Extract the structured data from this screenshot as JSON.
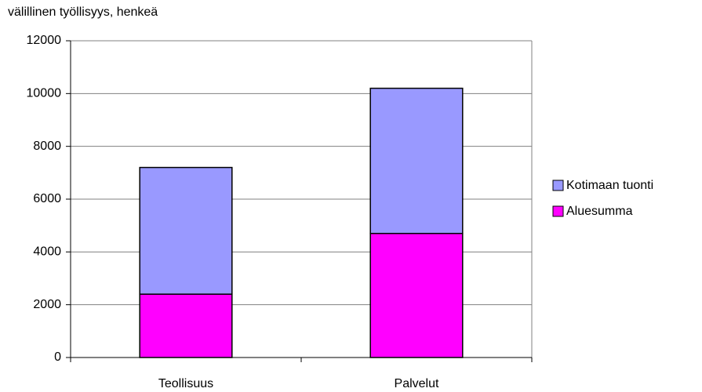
{
  "chart_data": {
    "type": "stacked_bar",
    "ylabel": "välillinen työllisyys, henkeä",
    "categories": [
      "Teollisuus",
      "Palvelut"
    ],
    "series": [
      {
        "name": "Aluesumma",
        "color": "#ff00ff",
        "values": [
          2400,
          4700
        ]
      },
      {
        "name": "Kotimaan tuonti",
        "color": "#9999ff",
        "values": [
          4800,
          5500
        ]
      }
    ],
    "ylim": [
      0,
      12000
    ],
    "yticks": [
      0,
      2000,
      4000,
      6000,
      8000,
      10000,
      12000
    ],
    "grid": true,
    "legend": "right"
  }
}
